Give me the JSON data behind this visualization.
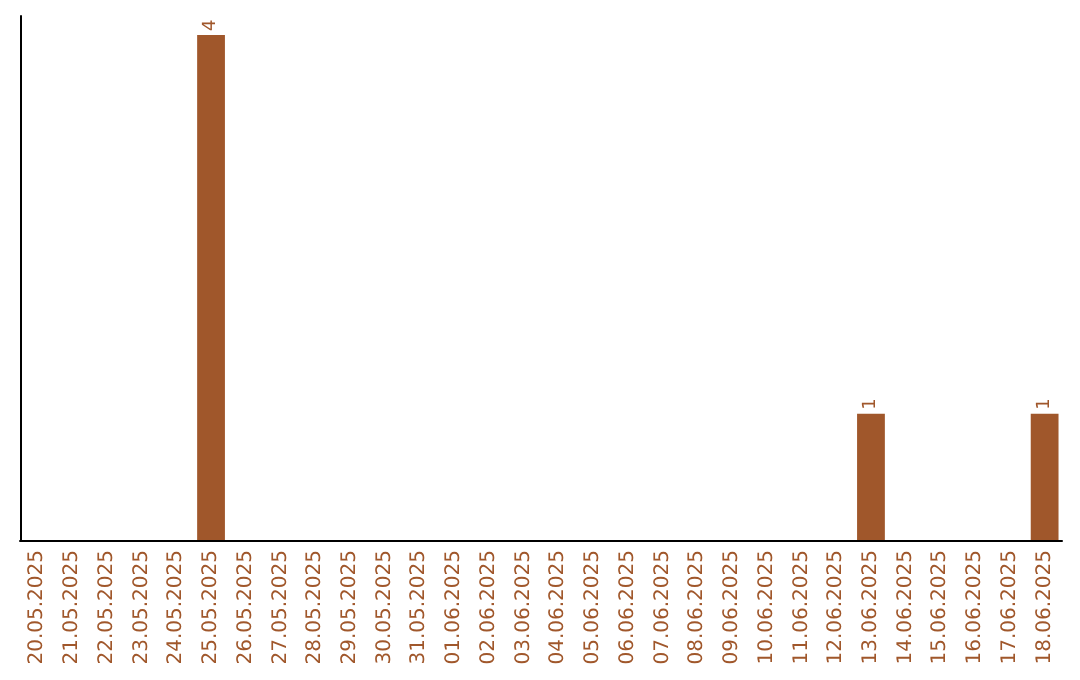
{
  "chart_data": {
    "type": "bar",
    "categories": [
      "20.05.2025",
      "21.05.2025",
      "22.05.2025",
      "23.05.2025",
      "24.05.2025",
      "25.05.2025",
      "26.05.2025",
      "27.05.2025",
      "28.05.2025",
      "29.05.2025",
      "30.05.2025",
      "31.05.2025",
      "01.06.2025",
      "02.06.2025",
      "03.06.2025",
      "04.06.2025",
      "05.06.2025",
      "06.06.2025",
      "07.06.2025",
      "08.06.2025",
      "09.06.2025",
      "10.06.2025",
      "11.06.2025",
      "12.06.2025",
      "13.06.2025",
      "14.06.2025",
      "15.06.2025",
      "16.06.2025",
      "17.06.2025",
      "18.06.2025"
    ],
    "values": [
      0,
      0,
      0,
      0,
      0,
      4,
      0,
      0,
      0,
      0,
      0,
      0,
      0,
      0,
      0,
      0,
      0,
      0,
      0,
      0,
      0,
      0,
      0,
      0,
      1,
      0,
      0,
      0,
      0,
      1
    ],
    "value_labels": [
      null,
      null,
      null,
      null,
      null,
      "4",
      null,
      null,
      null,
      null,
      null,
      null,
      null,
      null,
      null,
      null,
      null,
      null,
      null,
      null,
      null,
      null,
      null,
      null,
      "1",
      null,
      null,
      null,
      null,
      "1"
    ],
    "color": "#a0572b",
    "ylim": [
      0,
      4.15
    ],
    "tick_labels": "x"
  }
}
